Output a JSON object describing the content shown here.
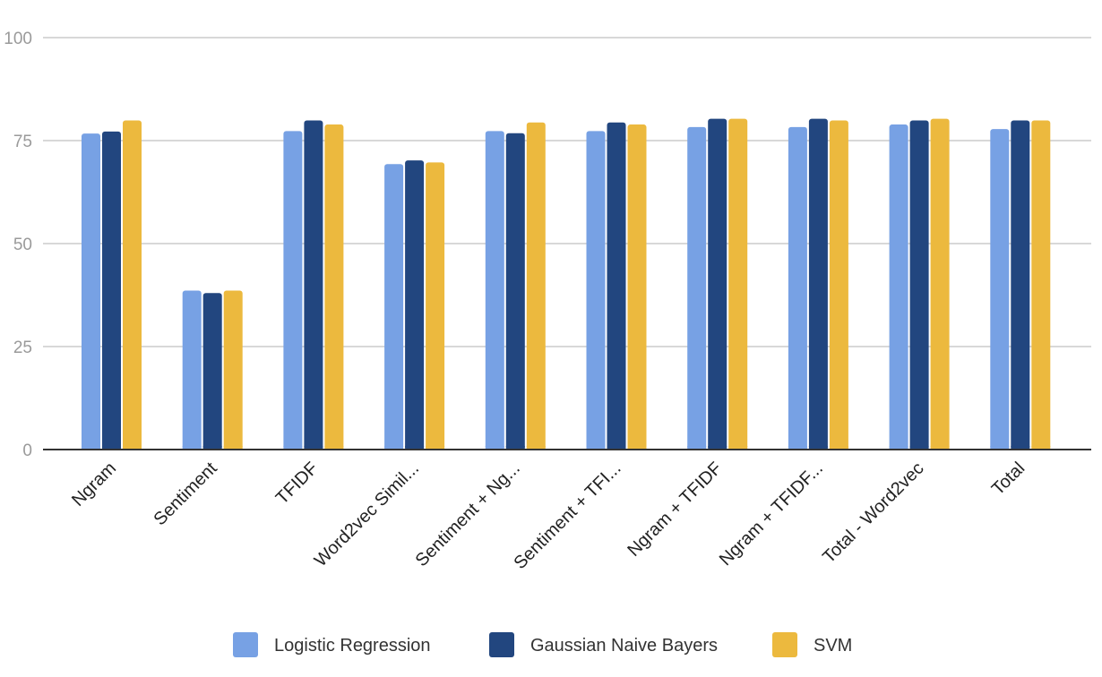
{
  "chart_data": {
    "type": "bar",
    "title": "",
    "xlabel": "",
    "ylabel": "",
    "ylim": [
      0,
      100
    ],
    "yticks": [
      0,
      25,
      50,
      75,
      100
    ],
    "grid": true,
    "legend_position": "bottom",
    "categories": [
      "Ngram",
      "Sentiment",
      "TFIDF",
      "Word2vec Simil...",
      "Sentiment + Ng...",
      "Sentiment + TFI...",
      "Ngram + TFIDF",
      "Ngram + TFIDF...",
      "Total - Word2vec",
      "Total"
    ],
    "series": [
      {
        "name": "Logistic Regression",
        "color": "#77a1e4",
        "values": [
          76.7,
          38.6,
          77.3,
          69.3,
          77.3,
          77.3,
          78.3,
          78.3,
          78.9,
          77.8
        ]
      },
      {
        "name": "Gaussian Naive Bayers",
        "color": "#22467f",
        "values": [
          77.2,
          38.0,
          79.9,
          70.2,
          76.8,
          79.4,
          80.3,
          80.3,
          79.9,
          79.9
        ]
      },
      {
        "name": "SVM",
        "color": "#ecb93e",
        "values": [
          79.9,
          38.6,
          78.9,
          69.7,
          79.4,
          78.9,
          80.3,
          79.9,
          80.3,
          79.9
        ]
      }
    ]
  }
}
